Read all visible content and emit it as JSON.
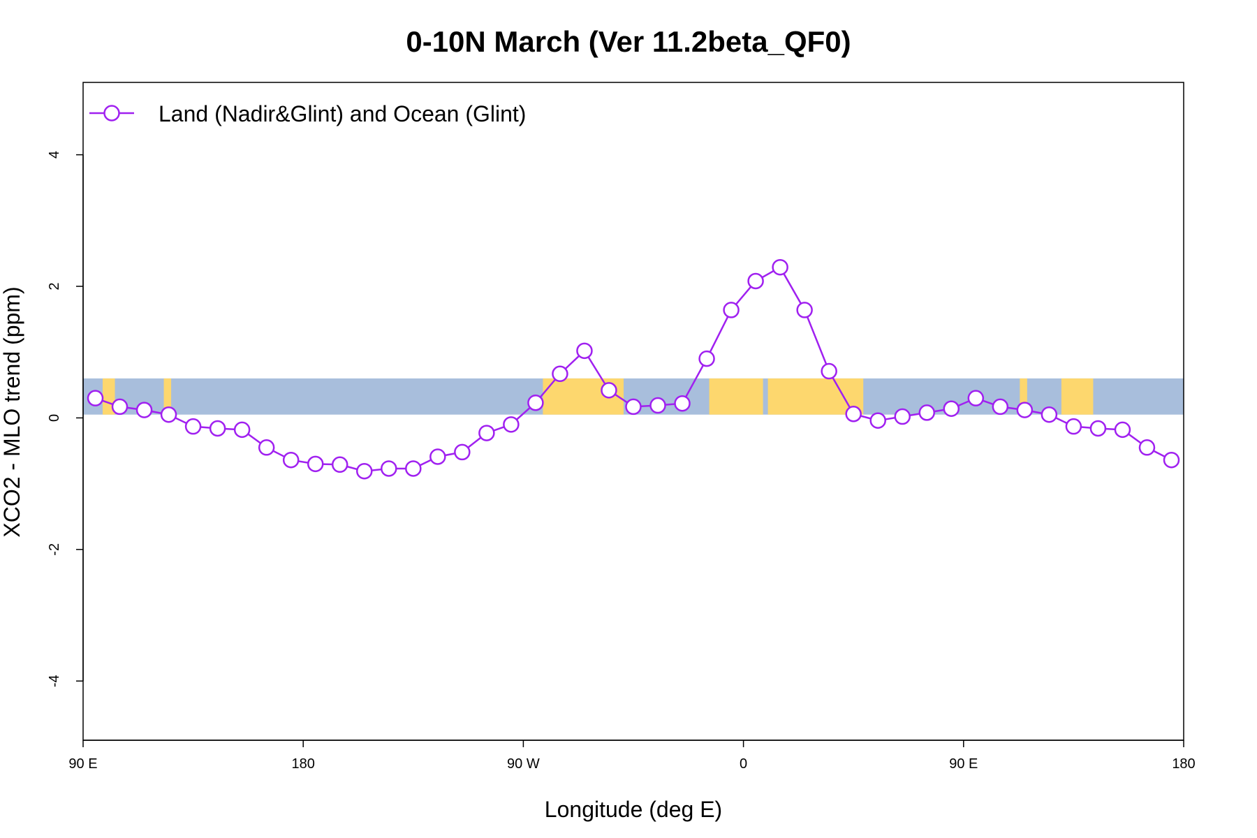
{
  "colors": {
    "series": "#a020f0",
    "ocean_band": "#a8bedc",
    "land": "#fdd76e",
    "axis": "#000000",
    "background": "#ffffff"
  },
  "chart_data": {
    "type": "line",
    "title": "0-10N March (Ver 11.2beta_QF0)",
    "xlabel": "Longitude (deg E)",
    "ylabel": "XCO2 - MLO trend (ppm)",
    "xlim": [
      90,
      540
    ],
    "ylim": [
      -4.9,
      5.1
    ],
    "grid": false,
    "legend_position": "top-left",
    "x_ticks": [
      {
        "value": 90,
        "label": "90 E"
      },
      {
        "value": 180,
        "label": "180"
      },
      {
        "value": 270,
        "label": "90 W"
      },
      {
        "value": 360,
        "label": "0"
      },
      {
        "value": 450,
        "label": "90 E"
      },
      {
        "value": 540,
        "label": "180"
      }
    ],
    "y_ticks": [
      {
        "value": 4,
        "label": "4"
      },
      {
        "value": 2,
        "label": "2"
      },
      {
        "value": 0,
        "label": "0"
      },
      {
        "value": -2,
        "label": "-2"
      },
      {
        "value": -4,
        "label": "-4"
      }
    ],
    "background_band": {
      "y_range": [
        0.05,
        0.6
      ],
      "land_segments": [
        [
          98,
          103
        ],
        [
          123,
          126
        ],
        [
          278,
          311
        ],
        [
          346,
          368
        ],
        [
          370,
          409
        ],
        [
          473,
          476
        ],
        [
          490,
          503
        ]
      ]
    },
    "series": [
      {
        "name": "Land (Nadir&Glint) and Ocean (Glint)",
        "marker": "open-circle",
        "x": [
          95,
          105,
          115,
          125,
          135,
          145,
          155,
          165,
          175,
          185,
          195,
          205,
          215,
          225,
          235,
          245,
          255,
          265,
          275,
          285,
          295,
          305,
          315,
          325,
          335,
          345,
          355,
          365,
          375,
          385,
          395,
          405,
          415,
          425,
          435,
          445,
          455,
          465,
          475,
          485,
          495,
          505,
          515,
          525,
          535
        ],
        "values": [
          0.3,
          0.17,
          0.12,
          0.05,
          -0.13,
          -0.16,
          -0.18,
          -0.45,
          -0.64,
          -0.7,
          -0.71,
          -0.81,
          -0.77,
          -0.77,
          -0.59,
          -0.52,
          -0.23,
          -0.1,
          0.23,
          0.67,
          1.02,
          0.42,
          0.17,
          0.19,
          0.22,
          0.9,
          1.64,
          2.08,
          2.29,
          1.64,
          0.71,
          0.06,
          -0.04,
          0.02,
          0.08,
          0.14,
          0.3,
          0.17,
          0.12,
          0.05,
          -0.13,
          -0.16,
          -0.18,
          -0.45,
          -0.64
        ]
      }
    ]
  }
}
